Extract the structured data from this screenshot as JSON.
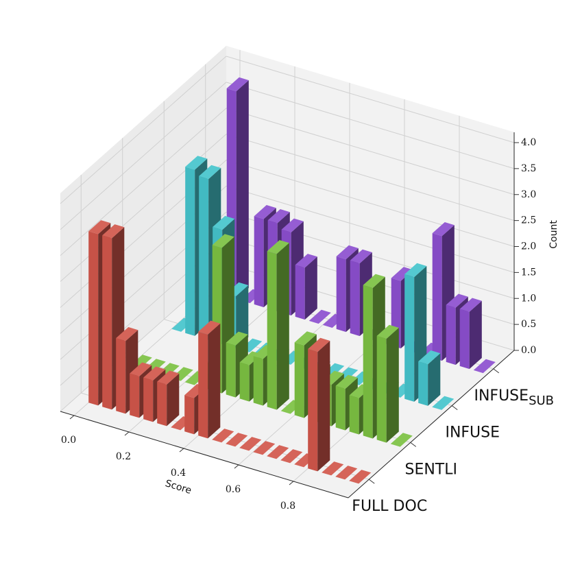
{
  "chart_data": {
    "type": "bar3d",
    "xlabel": "Score",
    "zlabel": "Count",
    "x": [
      0,
      0.05,
      0.1,
      0.15,
      0.2,
      0.25,
      0.3,
      0.35,
      0.4,
      0.45,
      0.5,
      0.55,
      0.6,
      0.65,
      0.7,
      0.75,
      0.8,
      0.85,
      0.9,
      0.95
    ],
    "xlim": [
      -0.05,
      1.0
    ],
    "xticks": [
      {
        "value": 0,
        "label": "0.0"
      },
      0.2,
      0.4,
      0.6,
      0.8
    ],
    "zlim": [
      0,
      4.2
    ],
    "zticks": [
      {
        "value": 0,
        "label": "0.0"
      },
      0.5,
      {
        "value": 1,
        "label": "1.0"
      },
      1.5,
      {
        "value": 2,
        "label": "2.0"
      },
      2.5,
      {
        "value": 3,
        "label": "3.0"
      },
      3.5,
      {
        "value": 4,
        "label": "4.0"
      }
    ],
    "grid": true,
    "series": [
      {
        "name": "FULL DOC",
        "color": "#d1564b",
        "values": [
          3.3,
          3.3,
          1.4,
          0.8,
          0.8,
          0.8,
          0,
          0.7,
          2.0,
          0,
          0,
          0,
          0,
          0,
          0,
          0,
          2.3,
          0,
          0,
          0
        ]
      },
      {
        "name": "SENTLI",
        "color": "#7cc142",
        "values": [
          0,
          0,
          0,
          0,
          0,
          0.3,
          2.8,
          1.0,
          0.7,
          0.9,
          3.0,
          0,
          1.4,
          0.9,
          0.8,
          0.8,
          0.7,
          2.9,
          2.0,
          0
        ]
      },
      {
        "name": "INFUSE",
        "color": "#45c4cc",
        "values": [
          0,
          3.2,
          3.1,
          2.2,
          1.0,
          0,
          0,
          0,
          0,
          0,
          0,
          0,
          0,
          0,
          0,
          0,
          0,
          2.4,
          0.8,
          0
        ]
      },
      {
        "name": "INFUSE",
        "subscript": "SUB",
        "color": "#8c4fcf",
        "values": [
          0,
          4.0,
          0,
          1.7,
          1.7,
          1.6,
          1.0,
          0,
          0,
          1.4,
          1.4,
          0,
          0,
          1.3,
          0,
          0,
          2.4,
          1.1,
          1.1,
          0
        ]
      }
    ]
  }
}
